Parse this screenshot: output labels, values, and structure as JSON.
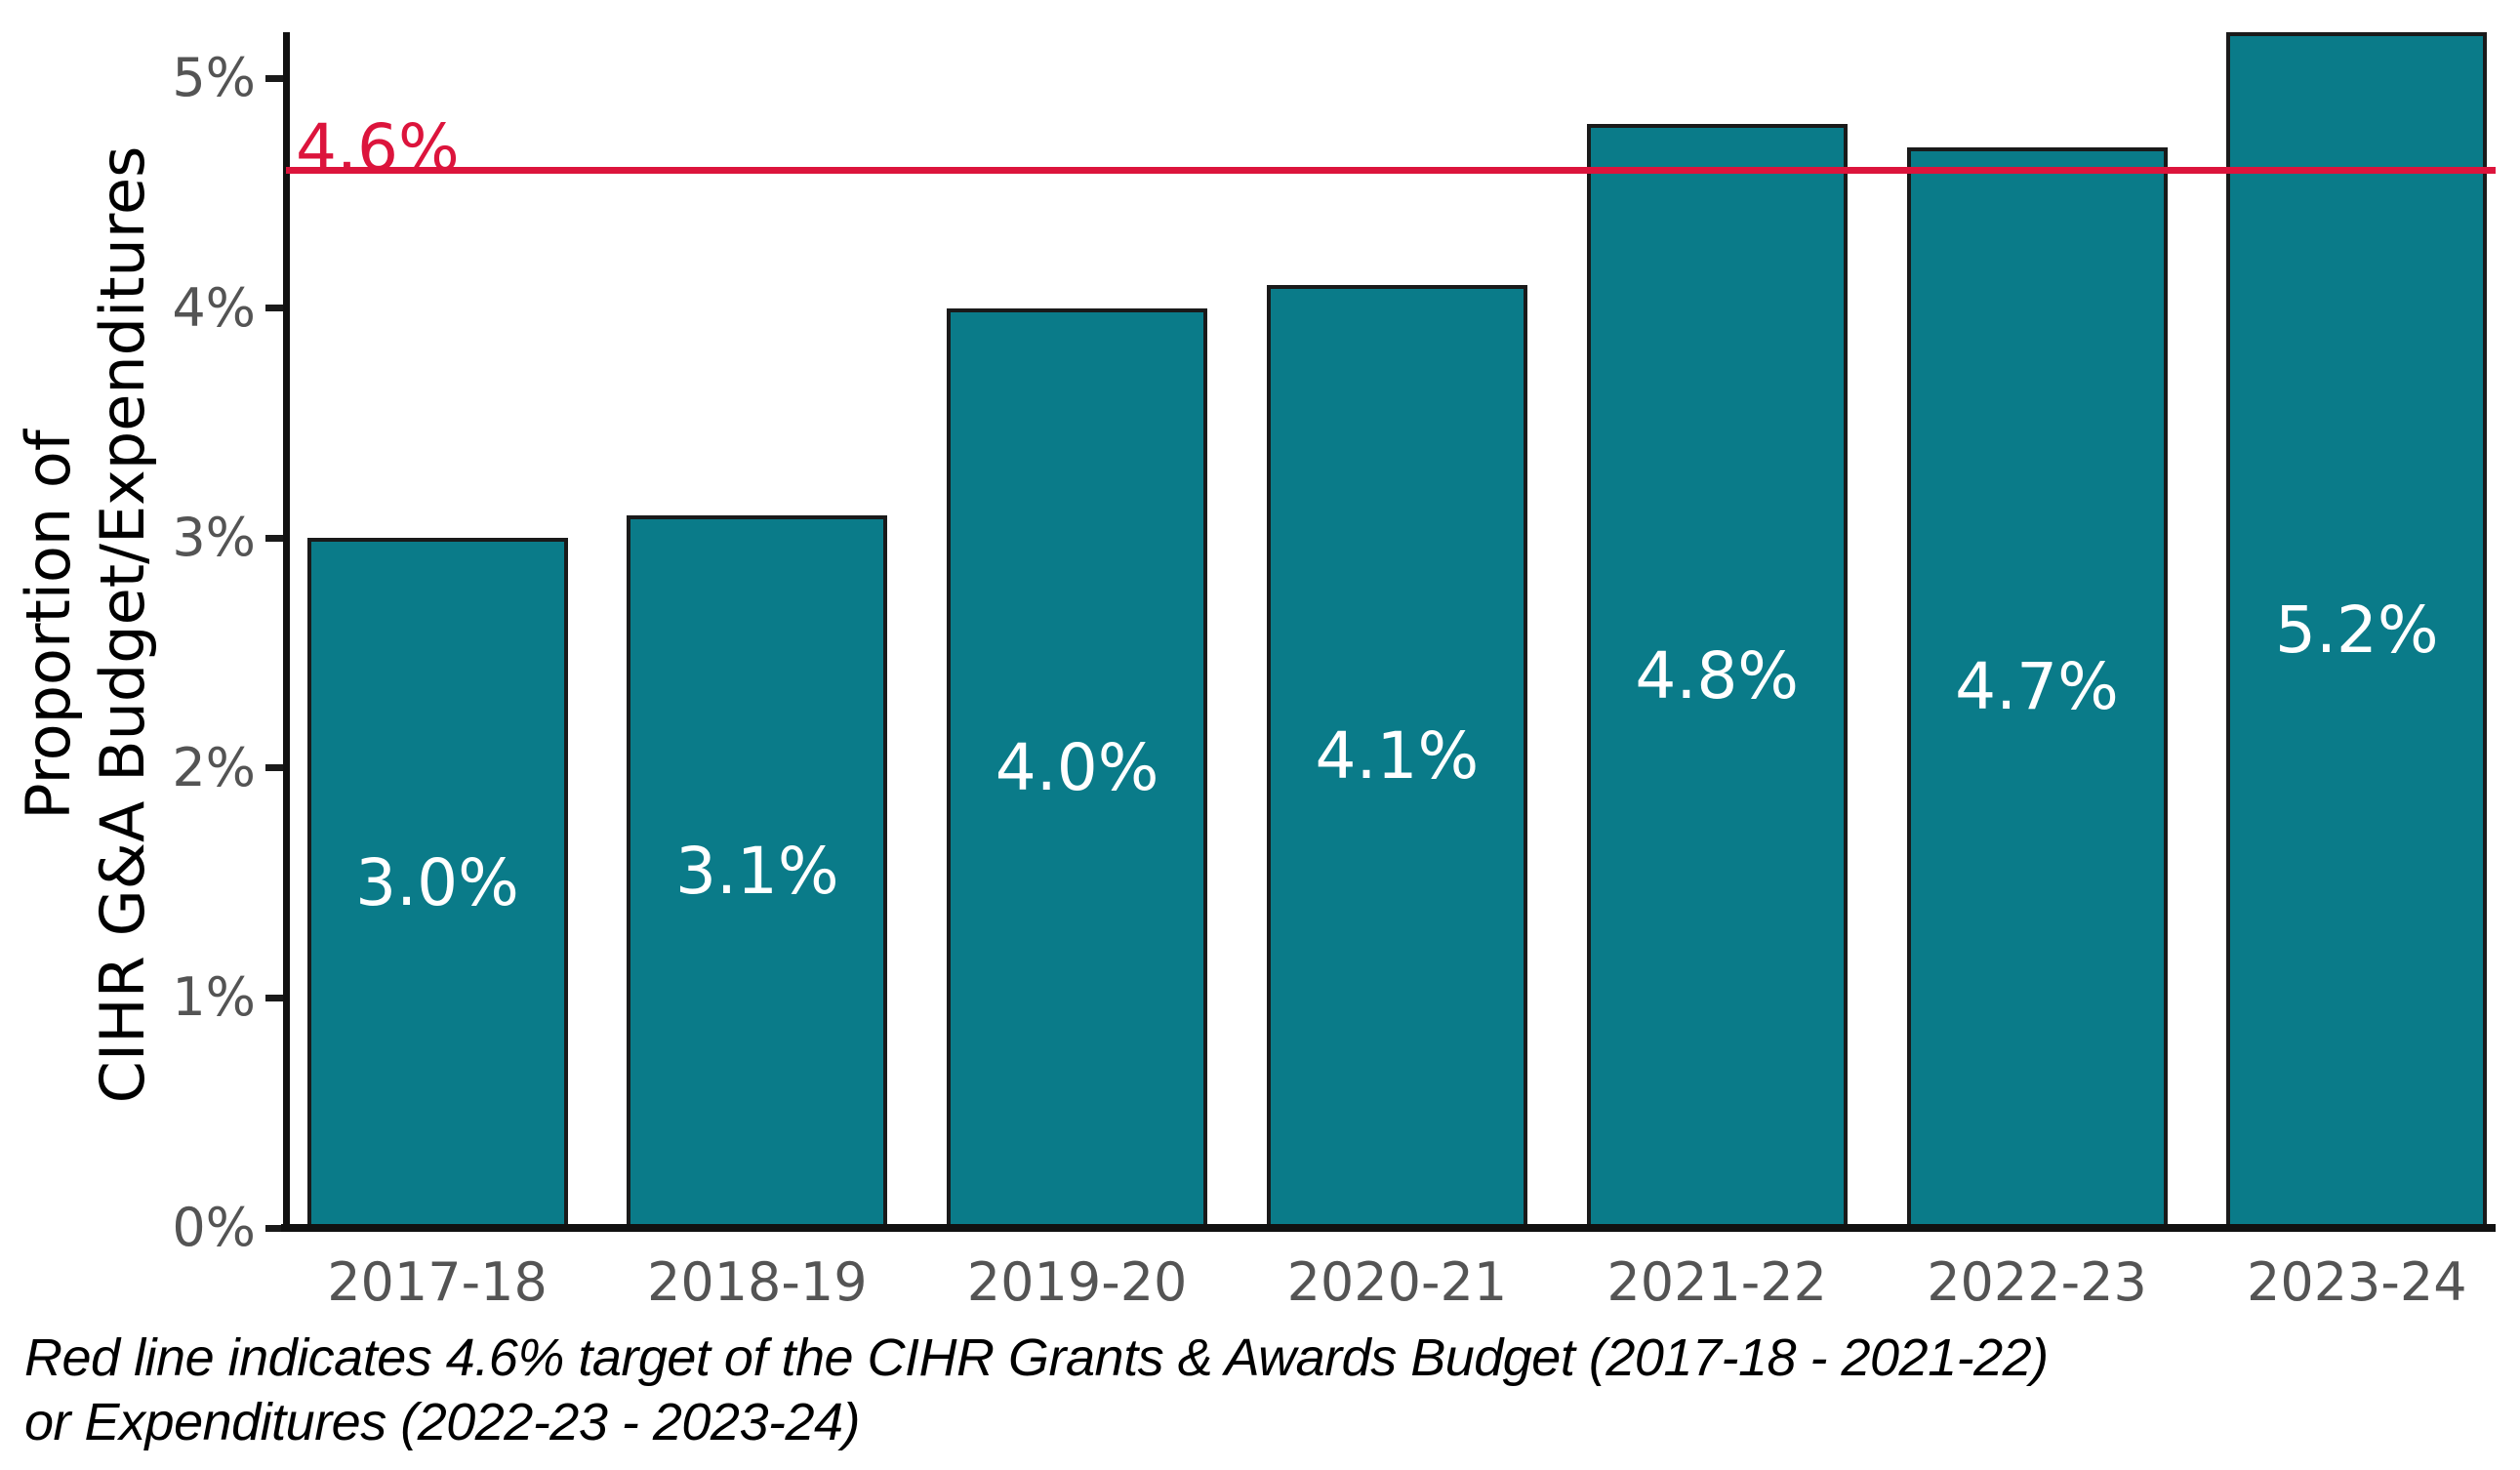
{
  "chart_data": {
    "type": "bar",
    "title": "",
    "categories": [
      "2017-18",
      "2018-19",
      "2019-20",
      "2020-21",
      "2021-22",
      "2022-23",
      "2023-24"
    ],
    "values": [
      3.0,
      3.1,
      4.0,
      4.1,
      4.8,
      4.7,
      5.2
    ],
    "bar_labels": [
      "3.0%",
      "3.1%",
      "4.0%",
      "4.1%",
      "4.8%",
      "4.7%",
      "5.2%"
    ],
    "xlabel": "",
    "ylabel_line1": "Proportion of",
    "ylabel_line2": "CIHR G&A Budget/Expenditures",
    "y_ticks": [
      {
        "value": 0,
        "label": "0%"
      },
      {
        "value": 1,
        "label": "1%"
      },
      {
        "value": 2,
        "label": "2%"
      },
      {
        "value": 3,
        "label": "3%"
      },
      {
        "value": 4,
        "label": "4%"
      },
      {
        "value": 5,
        "label": "5%"
      }
    ],
    "ylim": [
      0,
      5.2
    ],
    "grid": false,
    "legend_position": "none",
    "target_line": {
      "value": 4.6,
      "label": "4.6%"
    },
    "caption_line1": "Red line indicates 4.6% target of the CIHR Grants & Awards Budget (2017-18 - 2021-22)",
    "caption_line2": "or Expenditures (2022-23 - 2023-24)",
    "colors": {
      "bar_fill": "#0a7b89",
      "bar_border": "#1a1a1a",
      "target_red": "#dc143c",
      "tick_text": "#545454",
      "axis": "#111111",
      "bar_label_text": "#ffffff",
      "caption_text": "#000000"
    }
  }
}
